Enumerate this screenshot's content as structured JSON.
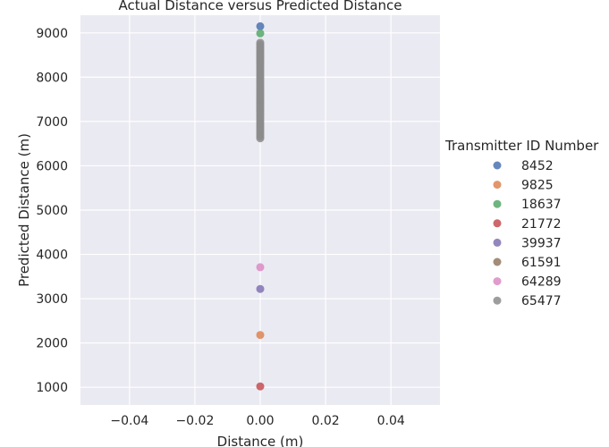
{
  "chart_data": {
    "type": "scatter",
    "title": "Actual Distance versus Predicted Distance",
    "xlabel": "Distance (m)",
    "ylabel": "Predicted Distance (m)",
    "xlim": [
      -0.055,
      0.055
    ],
    "ylim": [
      600,
      9400
    ],
    "xticks": [
      -0.04,
      -0.02,
      0.0,
      0.02,
      0.04
    ],
    "xtick_labels": [
      "−0.04",
      "−0.02",
      "0.00",
      "0.02",
      "0.04"
    ],
    "yticks": [
      1000,
      2000,
      3000,
      4000,
      5000,
      6000,
      7000,
      8000,
      9000
    ],
    "ytick_labels": [
      "1000",
      "2000",
      "3000",
      "4000",
      "5000",
      "6000",
      "7000",
      "8000",
      "9000"
    ],
    "grid": true,
    "legend": {
      "title": "Transmitter ID Number",
      "placement": "right"
    },
    "series": [
      {
        "name": "8452",
        "color": "#4c72b0",
        "points": [
          [
            0,
            9150
          ]
        ]
      },
      {
        "name": "9825",
        "color": "#dd8452",
        "points": [
          [
            0,
            2180
          ]
        ]
      },
      {
        "name": "18637",
        "color": "#55a868",
        "points": [
          [
            0,
            8990
          ]
        ]
      },
      {
        "name": "21772",
        "color": "#c44e52",
        "points": [
          [
            0,
            1020
          ]
        ]
      },
      {
        "name": "39937",
        "color": "#8172b3",
        "points": [
          [
            0,
            3220
          ]
        ]
      },
      {
        "name": "61591",
        "color": "#937860",
        "points": []
      },
      {
        "name": "64289",
        "color": "#da8bc3",
        "points": [
          [
            0,
            3710
          ]
        ]
      },
      {
        "name": "65477",
        "color": "#8c8c8c",
        "points": [
          [
            0,
            6620
          ],
          [
            0,
            6660
          ],
          [
            0,
            6700
          ],
          [
            0,
            6740
          ],
          [
            0,
            6780
          ],
          [
            0,
            6820
          ],
          [
            0,
            6860
          ],
          [
            0,
            6900
          ],
          [
            0,
            6940
          ],
          [
            0,
            6980
          ],
          [
            0,
            7020
          ],
          [
            0,
            7060
          ],
          [
            0,
            7100
          ],
          [
            0,
            7140
          ],
          [
            0,
            7180
          ],
          [
            0,
            7220
          ],
          [
            0,
            7260
          ],
          [
            0,
            7300
          ],
          [
            0,
            7340
          ],
          [
            0,
            7380
          ],
          [
            0,
            7420
          ],
          [
            0,
            7460
          ],
          [
            0,
            7500
          ],
          [
            0,
            7540
          ],
          [
            0,
            7580
          ],
          [
            0,
            7620
          ],
          [
            0,
            7660
          ],
          [
            0,
            7700
          ],
          [
            0,
            7740
          ],
          [
            0,
            7780
          ],
          [
            0,
            7820
          ],
          [
            0,
            7860
          ],
          [
            0,
            7900
          ],
          [
            0,
            7940
          ],
          [
            0,
            7980
          ],
          [
            0,
            8020
          ],
          [
            0,
            8060
          ],
          [
            0,
            8100
          ],
          [
            0,
            8140
          ],
          [
            0,
            8180
          ],
          [
            0,
            8220
          ],
          [
            0,
            8260
          ],
          [
            0,
            8300
          ],
          [
            0,
            8340
          ],
          [
            0,
            8380
          ],
          [
            0,
            8420
          ],
          [
            0,
            8460
          ],
          [
            0,
            8500
          ],
          [
            0,
            8540
          ],
          [
            0,
            8580
          ],
          [
            0,
            8620
          ],
          [
            0,
            8660
          ],
          [
            0,
            8700
          ],
          [
            0,
            8740
          ],
          [
            0,
            8780
          ]
        ]
      }
    ]
  }
}
